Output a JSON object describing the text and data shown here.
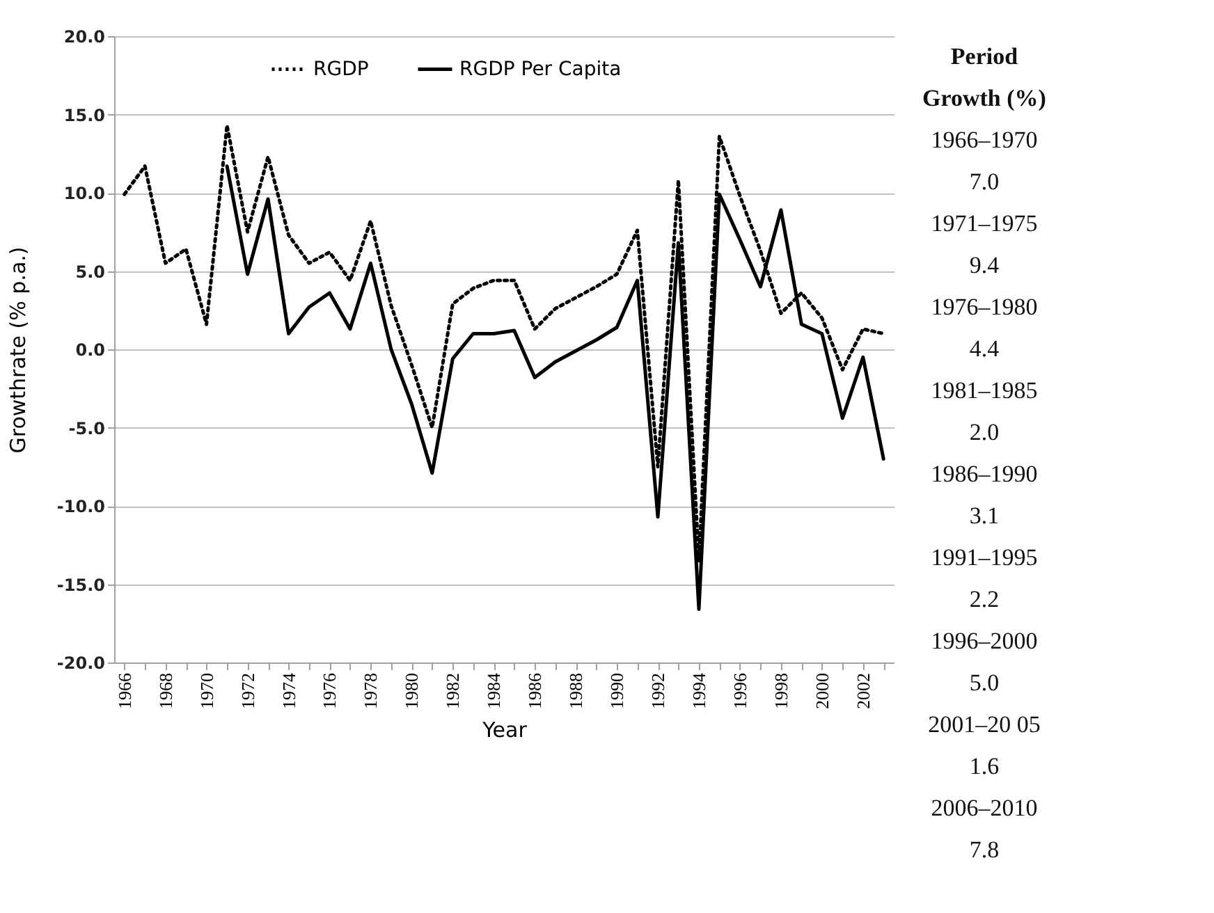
{
  "chart_data": {
    "type": "line",
    "ylabel": "Growthrate (% p.a.)",
    "xlabel": "Year",
    "categories": [
      "1966",
      null,
      "1968",
      null,
      "1970",
      null,
      "1972",
      null,
      "1974",
      null,
      "1976",
      null,
      "1978",
      null,
      "1980",
      null,
      "1982",
      null,
      "1984",
      null,
      "1986",
      null,
      "1988",
      null,
      "1990",
      null,
      "1992",
      null,
      "1994",
      null,
      "1996",
      null,
      "1998",
      null,
      "2000",
      null,
      "2002",
      null
    ],
    "series": [
      {
        "name": "RGDP",
        "color": "#000000",
        "line_style": "dotted",
        "values": [
          9.9,
          11.7,
          5.5,
          6.4,
          1.6,
          14.3,
          7.5,
          12.3,
          7.3,
          5.5,
          6.2,
          4.4,
          8.2,
          2.8,
          -1.0,
          -5.0,
          2.9,
          3.9,
          4.4,
          4.4,
          1.3,
          2.6,
          3.3,
          4.0,
          4.8,
          7.6,
          -7.5,
          10.8,
          -13.5,
          13.6,
          9.8,
          6.3,
          2.3,
          3.6,
          2.0,
          -1.3,
          1.3,
          1.0
        ]
      },
      {
        "name": "RGDP Per Capita",
        "color": "#000000",
        "line_style": "solid",
        "values": [
          null,
          null,
          null,
          null,
          null,
          11.7,
          4.8,
          9.6,
          1.0,
          2.7,
          3.6,
          1.3,
          5.5,
          0.0,
          -3.5,
          -7.9,
          -0.6,
          1.0,
          1.0,
          1.2,
          -1.8,
          -0.8,
          -0.1,
          0.6,
          1.4,
          4.4,
          -10.7,
          6.8,
          -16.6,
          9.9,
          7.0,
          4.0,
          8.9,
          1.6,
          1.0,
          -4.4,
          -0.5,
          -7.0
        ]
      }
    ],
    "ylim": [
      -20,
      20
    ],
    "yticks": [
      {
        "value": -20,
        "label": "-20.0"
      },
      {
        "value": -15,
        "label": "-15.0"
      },
      {
        "value": -10,
        "label": "-10.0"
      },
      {
        "value": -5,
        "label": "-5.0"
      },
      {
        "value": 0,
        "label": "0.0"
      },
      {
        "value": 5,
        "label": "5.0"
      },
      {
        "value": 10,
        "label": "10.0"
      },
      {
        "value": 15,
        "label": "15.0"
      },
      {
        "value": 20,
        "label": "20.0"
      }
    ],
    "grid": "y",
    "legend": "top",
    "marker": "none",
    "annotations": [
      "Period",
      "Growth (%)",
      "1966–1970",
      "7.0",
      "1971–1975",
      "9.4",
      "1976–1980",
      "4.4",
      "1981–1985",
      "2.0",
      "1986–1990",
      "3.1",
      "1991–1995",
      "2.2",
      "1996–2000",
      "5.0",
      "2001–20 05",
      "1.6",
      "2006–2010",
      "7.8"
    ]
  }
}
